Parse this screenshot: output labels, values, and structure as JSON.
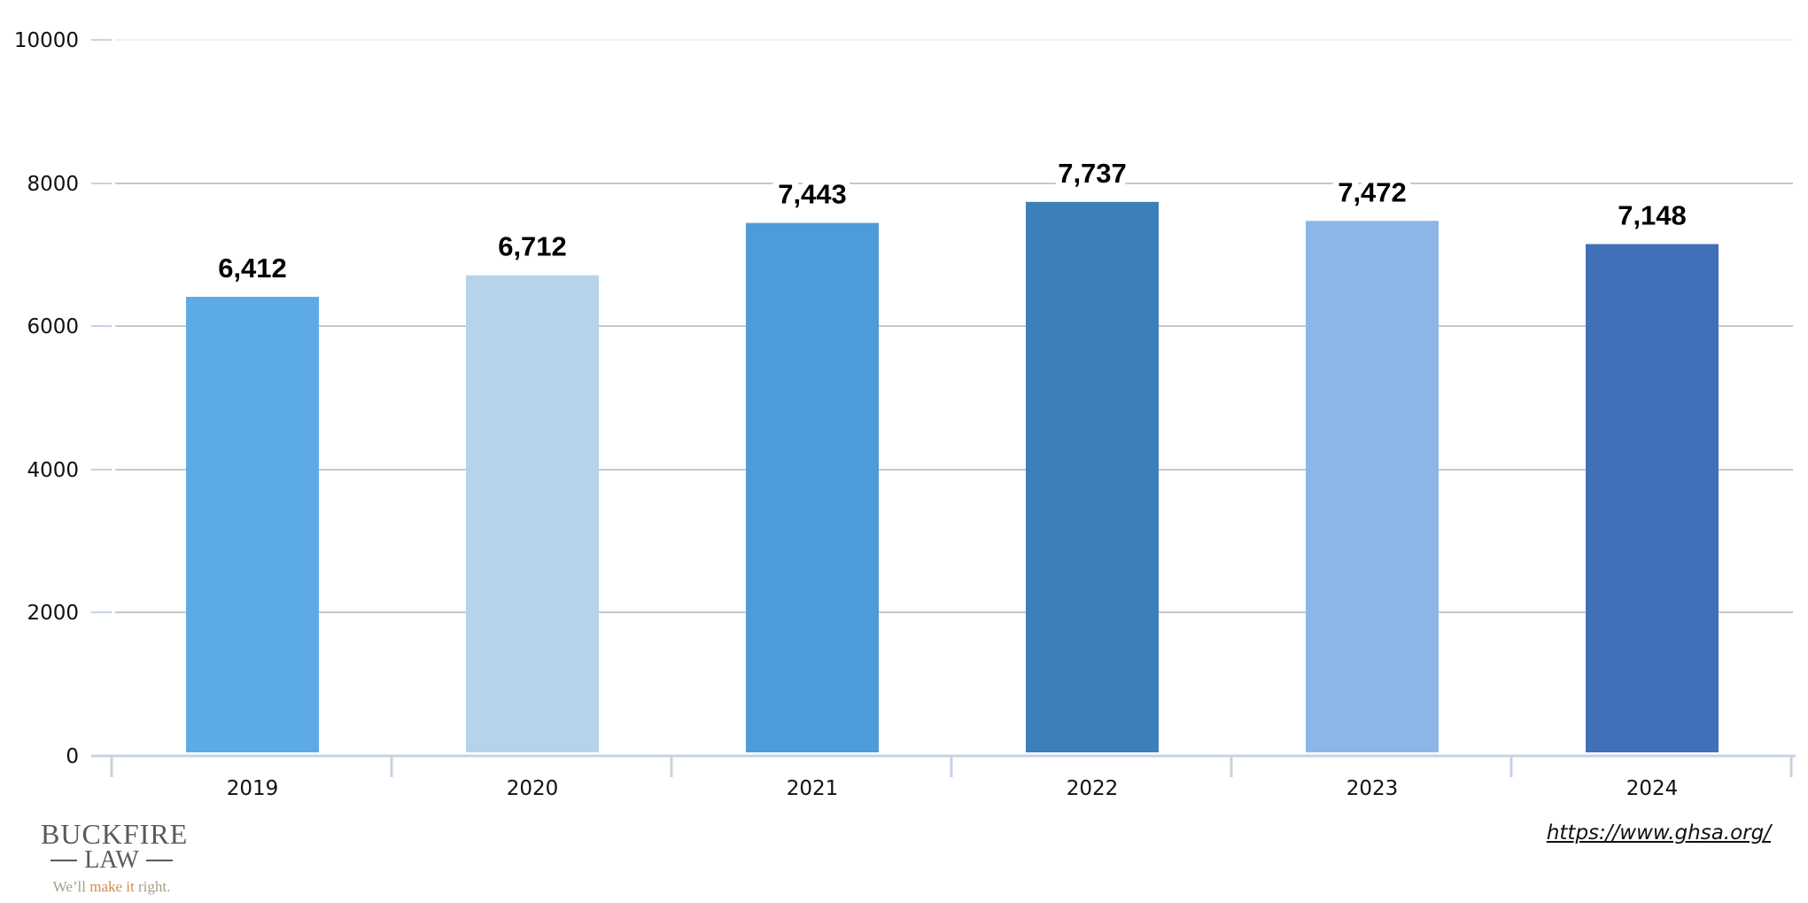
{
  "chart_data": {
    "type": "bar",
    "title": "",
    "xlabel": "",
    "ylabel": "",
    "categories": [
      "2019",
      "2020",
      "2021",
      "2022",
      "2023",
      "2024"
    ],
    "values": [
      6412,
      6712,
      7443,
      7737,
      7472,
      7148
    ],
    "data_labels": [
      "6,412",
      "6,712",
      "7,443",
      "7,737",
      "7,472",
      "7,148"
    ],
    "bar_colors": [
      "#5dabe4",
      "#b6d3ea",
      "#4e9bd9",
      "#3d7fb8",
      "#8cb6e8",
      "#416fb8"
    ],
    "ylim": [
      0,
      10000
    ],
    "yticks": [
      0,
      2000,
      4000,
      6000,
      8000,
      10000
    ],
    "ytick_labels": [
      "0",
      "2000",
      "4000",
      "6000",
      "8000",
      "10000"
    ],
    "grid": true,
    "legend": null
  },
  "footer": {
    "logo": {
      "name": "BUCKFIRE",
      "sub": "LAW",
      "tagline_pre": "We’ll ",
      "tagline_accent": "make it",
      "tagline_post": " right."
    },
    "source_url": "https://www.ghsa.org/"
  },
  "colors": {
    "gridline": "#c8c8c8",
    "top_gridline": "#f0f0f0",
    "axis": "#c5d3e3",
    "logo_text": "#5a5a5a",
    "logo_accent": "#d58a4a",
    "logo_tag": "#a59f88"
  }
}
